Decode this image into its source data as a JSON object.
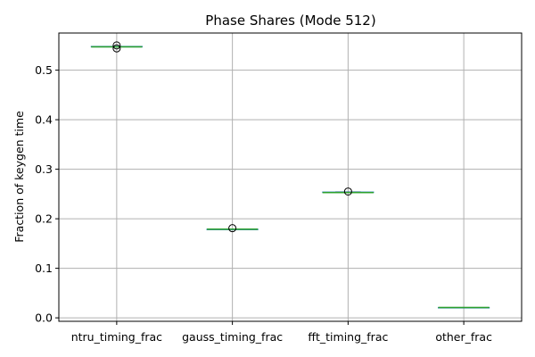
{
  "chart_data": {
    "type": "box",
    "title": "Phase Shares (Mode 512)",
    "xlabel": "",
    "ylabel": "Fraction of keygen time",
    "categories": [
      "ntru_timing_frac",
      "gauss_timing_frac",
      "fft_timing_frac",
      "other_frac"
    ],
    "ylim": [
      -0.007,
      0.575
    ],
    "yticks": [
      0.0,
      0.1,
      0.2,
      0.3,
      0.4,
      0.5
    ],
    "ytick_labels": [
      "0.0",
      "0.1",
      "0.2",
      "0.3",
      "0.4",
      "0.5"
    ],
    "grid": true,
    "boxes": [
      {
        "q1": 0.547,
        "median": 0.547,
        "q3": 0.548,
        "whisker_low": 0.547,
        "whisker_high": 0.548,
        "fliers": [
          0.544,
          0.55
        ]
      },
      {
        "q1": 0.179,
        "median": 0.179,
        "q3": 0.179,
        "whisker_low": 0.179,
        "whisker_high": 0.179,
        "fliers": [
          0.181
        ]
      },
      {
        "q1": 0.253,
        "median": 0.253,
        "q3": 0.254,
        "whisker_low": 0.253,
        "whisker_high": 0.254,
        "fliers": [
          0.255
        ]
      },
      {
        "q1": 0.021,
        "median": 0.021,
        "q3": 0.021,
        "whisker_low": 0.021,
        "whisker_high": 0.021,
        "fliers": []
      }
    ],
    "colors": {
      "box": "#1f77b4",
      "median": "#2ca02c",
      "whisker": "#1f77b4",
      "flier": "#000000",
      "grid": "#b0b0b0"
    }
  }
}
